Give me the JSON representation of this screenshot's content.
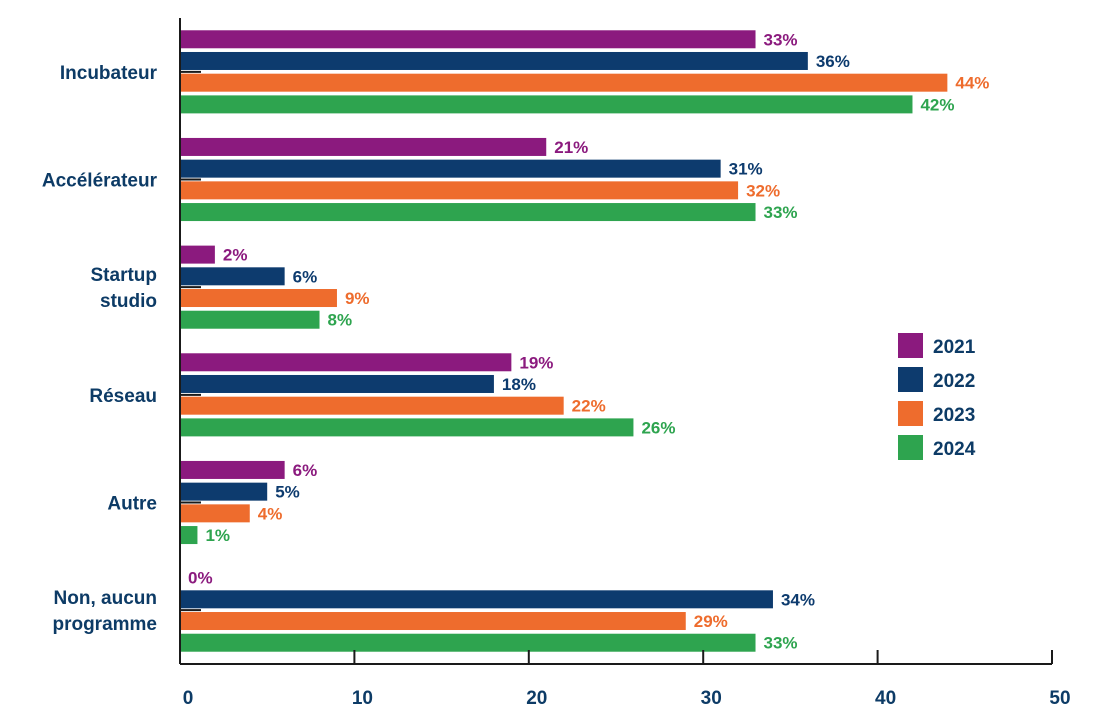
{
  "chart_data": {
    "type": "bar",
    "orientation": "horizontal",
    "categories": [
      "Incubateur",
      "Accélérateur",
      "Startup studio",
      "Réseau",
      "Autre",
      "Non, aucun programme"
    ],
    "category_lines": [
      [
        "Incubateur"
      ],
      [
        "Accélérateur"
      ],
      [
        "Startup",
        "studio"
      ],
      [
        "Réseau"
      ],
      [
        "Autre"
      ],
      [
        "Non, aucun",
        "programme"
      ]
    ],
    "series": [
      {
        "name": "2021",
        "color": "#8b1a7e",
        "values": [
          33,
          21,
          2,
          19,
          6,
          0
        ],
        "labels": [
          "33%",
          "21%",
          "2%",
          "19%",
          "6%",
          "0%"
        ]
      },
      {
        "name": "2022",
        "color": "#0d3b6e",
        "values": [
          36,
          31,
          6,
          18,
          5,
          34
        ],
        "labels": [
          "36%",
          "31%",
          "6%",
          "18%",
          "5%",
          "34%"
        ]
      },
      {
        "name": "2023",
        "color": "#ee6c2d",
        "values": [
          44,
          32,
          9,
          22,
          4,
          29
        ],
        "labels": [
          "44%",
          "32%",
          "9%",
          "22%",
          "4%",
          "29%"
        ]
      },
      {
        "name": "2024",
        "color": "#2ea44f",
        "values": [
          42,
          33,
          8,
          26,
          1,
          33
        ],
        "labels": [
          "42%",
          "33%",
          "8%",
          "26%",
          "1%",
          "33%"
        ]
      }
    ],
    "xlim": [
      0,
      50
    ],
    "xticks": [
      0,
      10,
      20,
      30,
      40,
      50
    ],
    "tick_labels": [
      "0",
      "10",
      "20",
      "30",
      "40",
      "50"
    ],
    "legend_position": "right",
    "grid": false,
    "axis_color": "#1a1a1a",
    "label_color": "#0d3b66"
  }
}
